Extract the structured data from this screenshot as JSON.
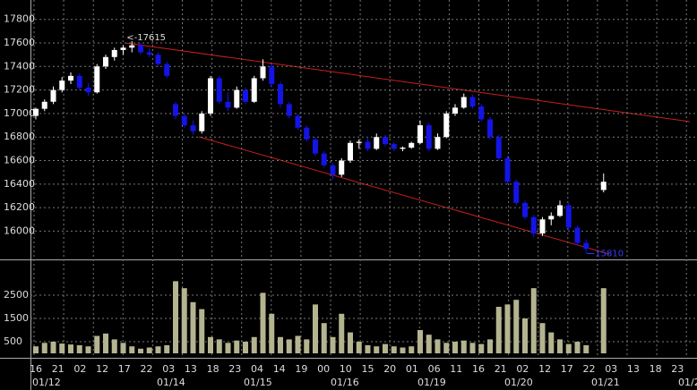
{
  "chart_data": [
    {
      "type": "candlestick",
      "open": [
        16980,
        17040,
        17100,
        17200,
        17280,
        17320,
        17220,
        17180,
        17400,
        17480,
        17540,
        17560,
        17580,
        17520,
        17500,
        17420,
        17080,
        16980,
        16900,
        16850,
        17000,
        17300,
        17100,
        17050,
        17200,
        17100,
        17300,
        17400,
        17250,
        17080,
        16980,
        16880,
        16780,
        16660,
        16560,
        16480,
        16600,
        16750,
        16760,
        16700,
        16800,
        16740,
        16700,
        16710,
        16750,
        16900,
        16700,
        16800,
        17000,
        17050,
        17140,
        17060,
        16950,
        16800,
        16620,
        16420,
        16240,
        16120,
        15980,
        16100,
        16130,
        16220,
        16030,
        15900,
        null,
        16350
      ],
      "high": [
        17050,
        17120,
        17230,
        17310,
        17350,
        17340,
        17260,
        17420,
        17500,
        17560,
        17580,
        17615,
        17600,
        17560,
        17520,
        17440,
        17100,
        17000,
        16940,
        17020,
        17320,
        17320,
        17180,
        17230,
        17220,
        17320,
        17460,
        17420,
        17270,
        17100,
        17000,
        16900,
        16800,
        16680,
        16580,
        16620,
        16770,
        16780,
        16800,
        16830,
        16820,
        16760,
        16720,
        16760,
        16940,
        16920,
        16830,
        17020,
        17080,
        17170,
        17160,
        17080,
        16970,
        16820,
        16640,
        16440,
        16260,
        16140,
        16120,
        16160,
        16260,
        16240,
        16050,
        15930,
        null,
        16490
      ],
      "low": [
        16950,
        17020,
        17080,
        17180,
        17250,
        17200,
        17150,
        17170,
        17380,
        17450,
        17500,
        17520,
        17500,
        17480,
        17400,
        17300,
        16950,
        16880,
        16820,
        16830,
        16980,
        17080,
        17020,
        17040,
        17080,
        17090,
        17280,
        17220,
        17050,
        16960,
        16860,
        16760,
        16640,
        16540,
        16440,
        16460,
        16580,
        16700,
        16680,
        16690,
        16720,
        16680,
        16680,
        16700,
        16740,
        16680,
        16690,
        16790,
        16980,
        17040,
        17040,
        16930,
        16780,
        16600,
        16400,
        16220,
        16100,
        15950,
        15960,
        16050,
        16120,
        16000,
        15880,
        15810,
        null,
        16330
      ],
      "close": [
        17040,
        17100,
        17200,
        17280,
        17320,
        17220,
        17180,
        17400,
        17480,
        17540,
        17560,
        17580,
        17520,
        17500,
        17420,
        17320,
        16980,
        16900,
        16850,
        17000,
        17300,
        17100,
        17050,
        17200,
        17100,
        17300,
        17400,
        17250,
        17080,
        16980,
        16880,
        16780,
        16660,
        16560,
        16480,
        16600,
        16750,
        16760,
        16700,
        16800,
        16740,
        16700,
        16710,
        16750,
        16900,
        16700,
        16800,
        17000,
        17050,
        17140,
        17060,
        16950,
        16800,
        16620,
        16420,
        16240,
        16120,
        15980,
        16100,
        16130,
        16220,
        16030,
        15900,
        15850,
        null,
        16420
      ],
      "up_color": "#ffffff",
      "down_color": "#1414e6",
      "ylim": [
        15760,
        17965
      ],
      "yticks": [
        16000,
        16200,
        16400,
        16600,
        16800,
        17000,
        17200,
        17400,
        17600,
        17800
      ],
      "grid": true,
      "annotations": [
        "<-17615",
        "15810"
      ],
      "time_labels": [
        "16",
        "21",
        "02",
        "12",
        "17",
        "22",
        "03",
        "13",
        "18",
        "23",
        "04",
        "14",
        "19",
        "00",
        "10",
        "15",
        "20",
        "01",
        "06",
        "11",
        "16",
        "21",
        "02",
        "12",
        "17",
        "22",
        "03",
        "13",
        "18",
        "23"
      ],
      "date_labels": [
        "01/12",
        "01/14",
        "01/15",
        "01/16",
        "01/19",
        "01/20",
        "01/21",
        "01/2"
      ]
    },
    {
      "type": "bar",
      "values": [
        300,
        450,
        500,
        420,
        380,
        350,
        300,
        750,
        850,
        600,
        450,
        300,
        200,
        250,
        300,
        350,
        3100,
        2800,
        2200,
        1900,
        700,
        600,
        450,
        550,
        500,
        700,
        2600,
        1700,
        700,
        600,
        750,
        600,
        2100,
        1300,
        700,
        1700,
        900,
        500,
        350,
        300,
        400,
        300,
        250,
        300,
        1000,
        800,
        600,
        450,
        500,
        550,
        450,
        400,
        600,
        2000,
        2100,
        2300,
        1500,
        2800,
        1300,
        900,
        600,
        400,
        500,
        350,
        null,
        2800
      ],
      "color": "#b4b490",
      "ylim": [
        0,
        3960
      ],
      "yticks": [
        500,
        1500,
        2500
      ]
    }
  ]
}
